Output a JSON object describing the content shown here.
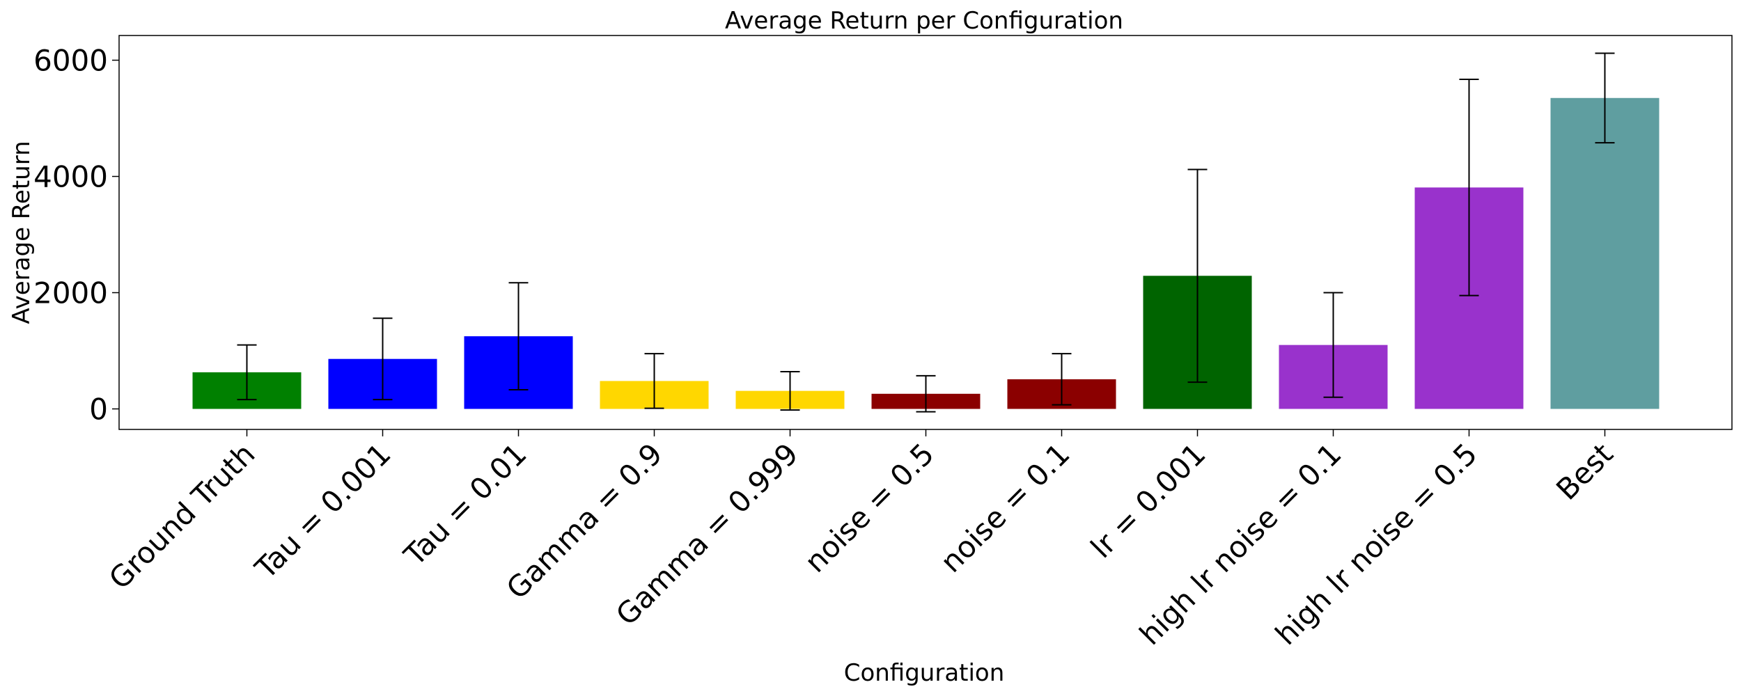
{
  "chart_data": {
    "type": "bar",
    "title": "Average Return per Configuration",
    "xlabel": "Configuration",
    "ylabel": "Average Return",
    "categories": [
      "Ground Truth",
      "Tau = 0.001",
      "Tau = 0.01",
      "Gamma = 0.9",
      "Gamma = 0.999",
      "noise = 0.5",
      "noise = 0.1",
      "lr = 0.001",
      "high lr noise = 0.1",
      "high lr noise = 0.5",
      "Best"
    ],
    "values": [
      630,
      860,
      1250,
      480,
      310,
      260,
      510,
      2290,
      1100,
      3810,
      5350
    ],
    "error": [
      470,
      700,
      920,
      470,
      330,
      310,
      440,
      1830,
      900,
      1860,
      770
    ],
    "colors": [
      "#008000",
      "#0000ff",
      "#0000ff",
      "#ffd700",
      "#ffd700",
      "#8b0000",
      "#8b0000",
      "#006400",
      "#9932cc",
      "#9932cc",
      "#5f9ea0"
    ],
    "yticks": [
      0,
      2000,
      4000,
      6000
    ],
    "ylim": [
      -330,
      6440
    ],
    "grid": false
  }
}
